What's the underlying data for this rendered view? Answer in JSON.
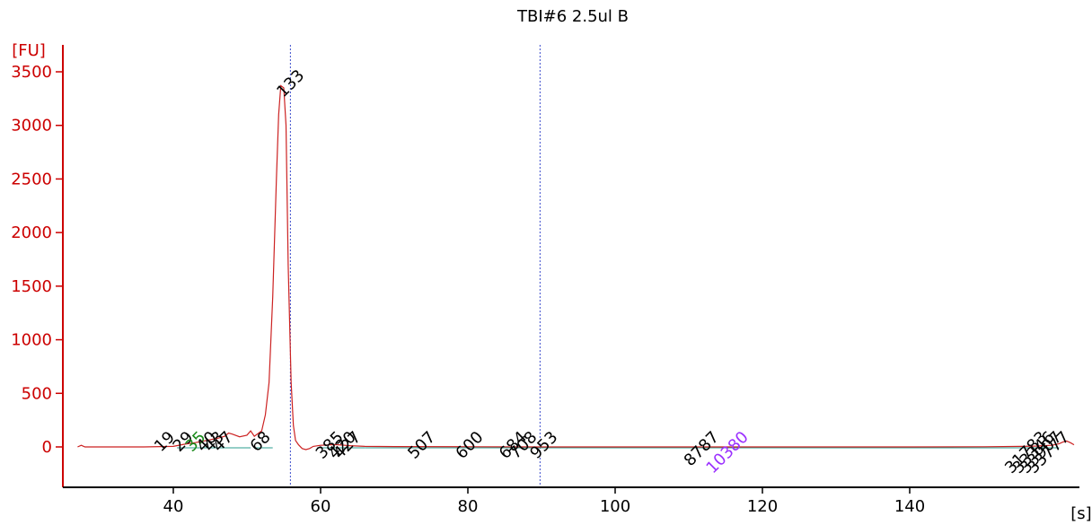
{
  "chart_data": {
    "type": "line",
    "title": "TBI#6 2.5ul B",
    "y_unit": "[FU]",
    "x_unit": "[s]",
    "xlim": [
      25,
      1000
    ],
    "ylim": [
      -380,
      3700
    ],
    "x_ticks": [
      40,
      60,
      80,
      100,
      120,
      140
    ],
    "y_ticks": [
      0,
      500,
      1000,
      1500,
      2000,
      2500,
      3000,
      3500
    ],
    "colors": {
      "trace": "#cc2222",
      "axis": "#cc0000",
      "baseline": "#2a9d8f",
      "marker_line": "#3b4ccc",
      "ladder_label": "#1a8a1a",
      "upper_marker_label": "#9b30ff"
    },
    "series": [
      {
        "x": [
          27,
          27.5,
          28,
          36,
          40,
          41.5,
          43,
          44.5,
          46,
          47,
          47.5,
          48,
          49,
          50,
          50.5,
          51,
          52,
          52.5,
          53,
          53.5,
          54,
          54.3,
          54.6,
          55,
          55.3,
          55.6,
          56,
          56.3,
          56.6,
          57,
          57.5,
          58,
          58.5,
          59,
          60,
          62,
          64,
          66,
          70,
          80,
          90,
          100,
          120,
          140,
          150,
          155,
          157,
          158,
          159,
          160,
          160.5,
          161,
          161.5,
          162
        ],
        "y": [
          0,
          15,
          0,
          0,
          5,
          25,
          40,
          60,
          80,
          100,
          130,
          120,
          95,
          110,
          150,
          100,
          150,
          300,
          600,
          1400,
          2500,
          3100,
          3370,
          3350,
          3000,
          1700,
          600,
          200,
          60,
          20,
          -15,
          -25,
          -15,
          5,
          15,
          22,
          12,
          5,
          3,
          2,
          0,
          0,
          0,
          0,
          2,
          5,
          8,
          12,
          15,
          30,
          45,
          55,
          40,
          20
        ]
      }
    ],
    "peak_labels": [
      {
        "label": "19",
        "x": 40.3,
        "color": "black"
      },
      {
        "label": "29",
        "x": 42.8,
        "color": "black"
      },
      {
        "label": "35",
        "x": 44.5,
        "color": "green"
      },
      {
        "label": "40",
        "x": 46.0,
        "color": "black"
      },
      {
        "label": "43",
        "x": 47.0,
        "color": "black"
      },
      {
        "label": "47",
        "x": 48.2,
        "color": "black"
      },
      {
        "label": "68",
        "x": 53.3,
        "color": "black"
      },
      {
        "label": "133",
        "x": 57.9,
        "color": "black"
      },
      {
        "label": "385",
        "x": 63.2,
        "color": "black"
      },
      {
        "label": "420",
        "x": 64.9,
        "color": "black"
      },
      {
        "label": "427",
        "x": 65.6,
        "color": "black"
      },
      {
        "label": "507",
        "x": 75.7,
        "color": "black"
      },
      {
        "label": "600",
        "x": 82.2,
        "color": "black"
      },
      {
        "label": "684",
        "x": 88.1,
        "color": "black"
      },
      {
        "label": "708",
        "x": 89.5,
        "color": "black"
      },
      {
        "label": "953",
        "x": 92.3,
        "color": "black"
      },
      {
        "label": "8787",
        "x": 114.2,
        "color": "black"
      },
      {
        "label": "10380",
        "x": 118.2,
        "color": "purple"
      },
      {
        "label": "31783",
        "x": 158.5,
        "color": "black"
      },
      {
        "label": "33346",
        "x": 159.5,
        "color": "black"
      },
      {
        "label": "33907",
        "x": 160.5,
        "color": "black"
      },
      {
        "label": "33777",
        "x": 161.5,
        "color": "black"
      }
    ],
    "marker_lines_x": [
      55.9,
      89.8
    ],
    "grid": false,
    "legend": "none"
  }
}
